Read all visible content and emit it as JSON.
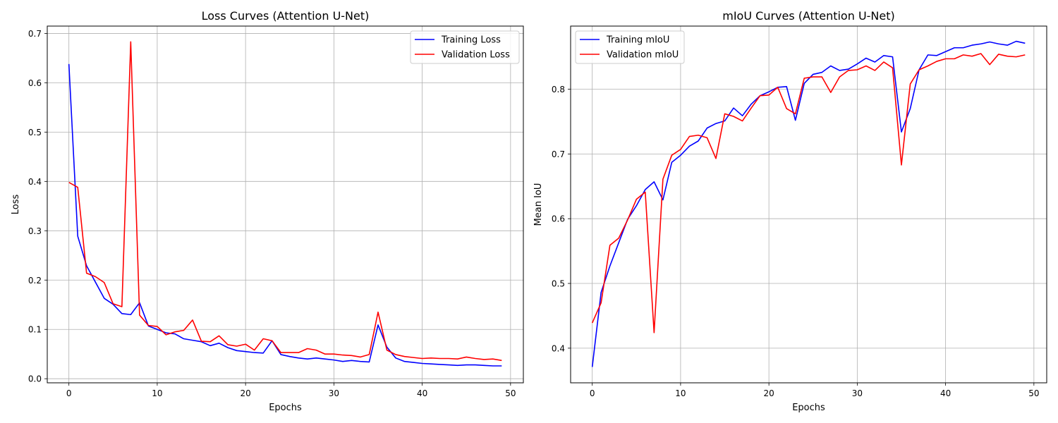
{
  "chart_data": [
    {
      "type": "line",
      "title": "Loss Curves (Attention U-Net)",
      "xlabel": "Epochs",
      "ylabel": "Loss",
      "xlim": [
        -2.45,
        51.45
      ],
      "ylim": [
        -0.0083,
        0.7149
      ],
      "xticks": [
        0,
        10,
        20,
        30,
        40,
        50
      ],
      "yticks": [
        0.0,
        0.1,
        0.2,
        0.3,
        0.4,
        0.5,
        0.6,
        0.7
      ],
      "xtick_labels": [
        "0",
        "10",
        "20",
        "30",
        "40",
        "50"
      ],
      "ytick_labels": [
        "0.0",
        "0.1",
        "0.2",
        "0.3",
        "0.4",
        "0.5",
        "0.6",
        "0.7"
      ],
      "grid": true,
      "legend": "upper right",
      "x": [
        0,
        1,
        2,
        3,
        4,
        5,
        6,
        7,
        8,
        9,
        10,
        11,
        12,
        13,
        14,
        15,
        16,
        17,
        18,
        19,
        20,
        21,
        22,
        23,
        24,
        25,
        26,
        27,
        28,
        29,
        30,
        31,
        32,
        33,
        34,
        35,
        36,
        37,
        38,
        39,
        40,
        41,
        42,
        43,
        44,
        45,
        46,
        47,
        48,
        49
      ],
      "series": [
        {
          "name": "Training Loss",
          "color": "#0000ff",
          "values": [
            0.638,
            0.289,
            0.229,
            0.196,
            0.163,
            0.151,
            0.132,
            0.13,
            0.154,
            0.107,
            0.1,
            0.093,
            0.091,
            0.081,
            0.078,
            0.075,
            0.067,
            0.072,
            0.063,
            0.057,
            0.055,
            0.053,
            0.052,
            0.077,
            0.049,
            0.045,
            0.042,
            0.04,
            0.042,
            0.04,
            0.038,
            0.035,
            0.037,
            0.035,
            0.034,
            0.109,
            0.064,
            0.042,
            0.035,
            0.033,
            0.031,
            0.03,
            0.029,
            0.028,
            0.027,
            0.028,
            0.028,
            0.027,
            0.026,
            0.026
          ]
        },
        {
          "name": "Validation Loss",
          "color": "#ff0000",
          "values": [
            0.398,
            0.388,
            0.214,
            0.207,
            0.195,
            0.152,
            0.146,
            0.683,
            0.129,
            0.108,
            0.106,
            0.089,
            0.095,
            0.098,
            0.119,
            0.076,
            0.075,
            0.087,
            0.069,
            0.066,
            0.07,
            0.058,
            0.081,
            0.077,
            0.053,
            0.053,
            0.053,
            0.061,
            0.058,
            0.05,
            0.05,
            0.048,
            0.047,
            0.044,
            0.049,
            0.135,
            0.058,
            0.049,
            0.045,
            0.043,
            0.041,
            0.042,
            0.041,
            0.041,
            0.04,
            0.044,
            0.041,
            0.039,
            0.04,
            0.037
          ]
        }
      ]
    },
    {
      "type": "line",
      "title": "mIoU Curves (Attention U-Net)",
      "xlabel": "Epochs",
      "ylabel": "Mean IoU",
      "xlim": [
        -2.45,
        51.45
      ],
      "ylim": [
        0.3465,
        0.8975
      ],
      "xticks": [
        0,
        10,
        20,
        30,
        40,
        50
      ],
      "yticks": [
        0.4,
        0.5,
        0.6,
        0.7,
        0.8
      ],
      "xtick_labels": [
        "0",
        "10",
        "20",
        "30",
        "40",
        "50"
      ],
      "ytick_labels": [
        "0.4",
        "0.5",
        "0.6",
        "0.7",
        "0.8"
      ],
      "grid": true,
      "legend": "upper left",
      "x": [
        0,
        1,
        2,
        3,
        4,
        5,
        6,
        7,
        8,
        9,
        10,
        11,
        12,
        13,
        14,
        15,
        16,
        17,
        18,
        19,
        20,
        21,
        22,
        23,
        24,
        25,
        26,
        27,
        28,
        29,
        30,
        31,
        32,
        33,
        34,
        35,
        36,
        37,
        38,
        39,
        40,
        41,
        42,
        43,
        44,
        45,
        46,
        47,
        48,
        49
      ],
      "series": [
        {
          "name": "Training mIoU",
          "color": "#0000ff",
          "values": [
            0.371,
            0.486,
            0.527,
            0.563,
            0.599,
            0.62,
            0.645,
            0.657,
            0.629,
            0.687,
            0.698,
            0.712,
            0.72,
            0.74,
            0.747,
            0.751,
            0.771,
            0.759,
            0.777,
            0.79,
            0.796,
            0.803,
            0.804,
            0.752,
            0.809,
            0.823,
            0.826,
            0.836,
            0.829,
            0.831,
            0.839,
            0.848,
            0.842,
            0.852,
            0.85,
            0.734,
            0.77,
            0.83,
            0.853,
            0.852,
            0.858,
            0.864,
            0.864,
            0.868,
            0.87,
            0.873,
            0.87,
            0.868,
            0.874,
            0.871
          ]
        },
        {
          "name": "Validation mIoU",
          "color": "#ff0000",
          "values": [
            0.439,
            0.47,
            0.559,
            0.57,
            0.598,
            0.63,
            0.641,
            0.424,
            0.661,
            0.698,
            0.707,
            0.727,
            0.729,
            0.725,
            0.693,
            0.762,
            0.758,
            0.751,
            0.771,
            0.79,
            0.791,
            0.803,
            0.77,
            0.762,
            0.817,
            0.819,
            0.819,
            0.795,
            0.819,
            0.829,
            0.83,
            0.836,
            0.829,
            0.842,
            0.833,
            0.683,
            0.808,
            0.83,
            0.836,
            0.843,
            0.847,
            0.847,
            0.853,
            0.851,
            0.855,
            0.838,
            0.854,
            0.851,
            0.85,
            0.853
          ]
        }
      ]
    }
  ]
}
